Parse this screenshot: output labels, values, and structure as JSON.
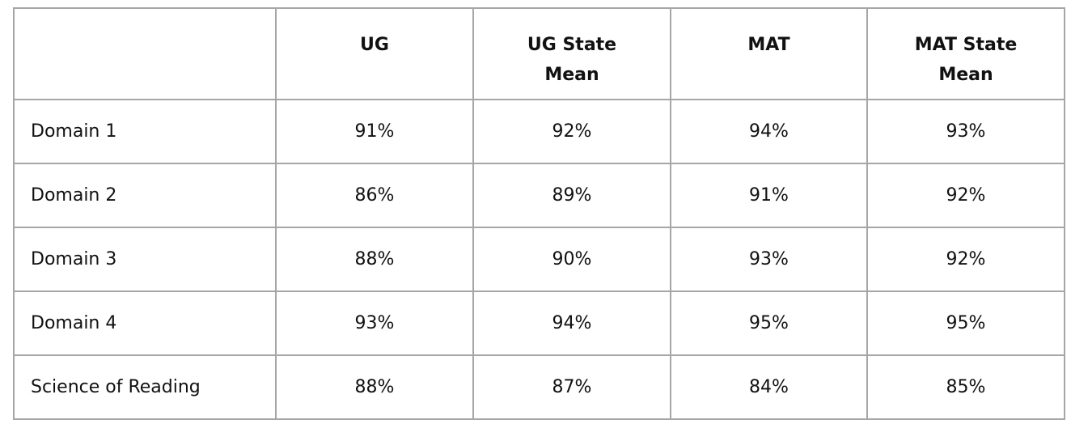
{
  "table": {
    "header": [
      "",
      "UG",
      "UG State Mean",
      "MAT",
      "MAT State Mean"
    ],
    "rows": [
      [
        "Domain 1",
        "91%",
        "92%",
        "94%",
        "93%"
      ],
      [
        "Domain 2",
        "86%",
        "89%",
        "91%",
        "92%"
      ],
      [
        "Domain 3",
        "88%",
        "90%",
        "93%",
        "92%"
      ],
      [
        "Domain 4",
        "93%",
        "94%",
        "95%",
        "95%"
      ],
      [
        "Science of Reading",
        "88%",
        "87%",
        "84%",
        "85%"
      ]
    ]
  }
}
